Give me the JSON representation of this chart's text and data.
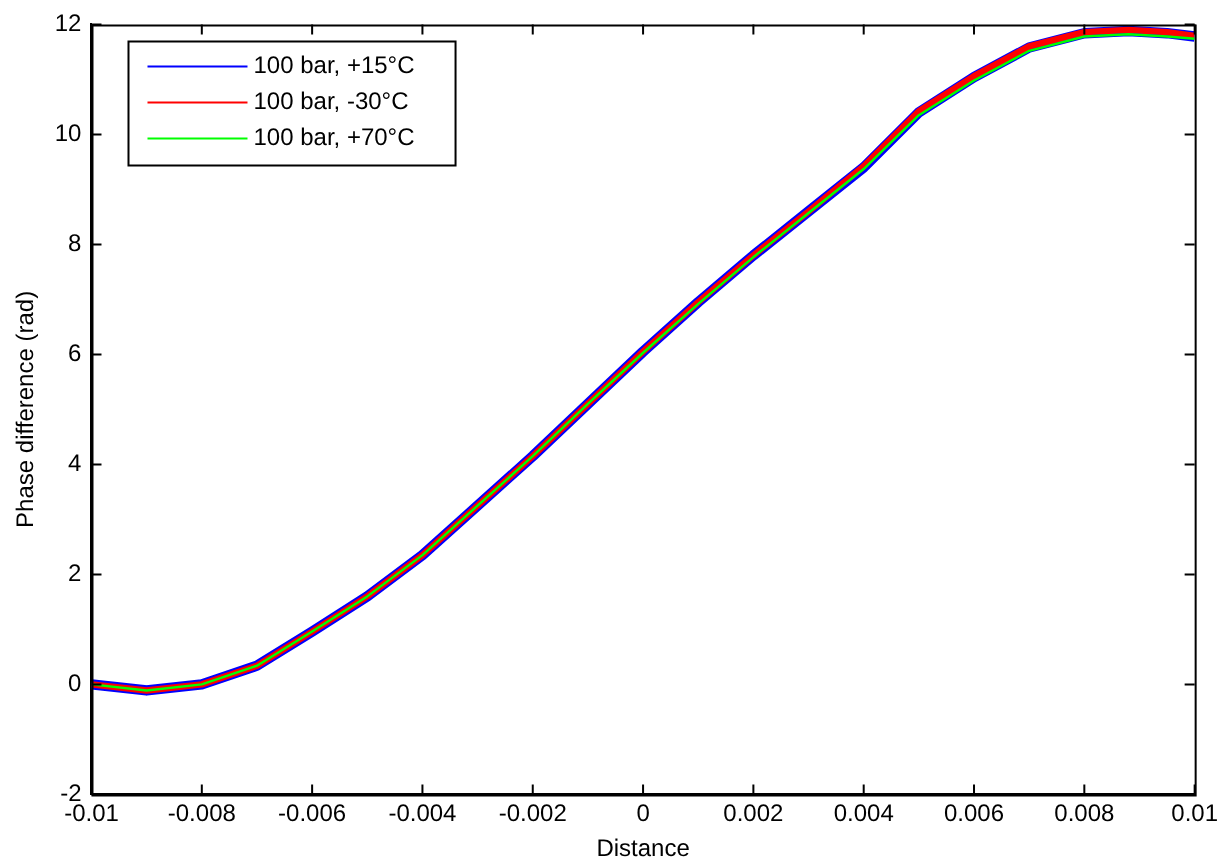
{
  "chart_data": {
    "type": "line",
    "xlabel": "Distance",
    "ylabel": "Phase difference (rad)",
    "x": [
      -0.01,
      -0.009,
      -0.008,
      -0.007,
      -0.006,
      -0.005,
      -0.004,
      -0.003,
      -0.002,
      -0.001,
      0,
      0.001,
      0.002,
      0.003,
      0.004,
      0.005,
      0.006,
      0.007,
      0.008,
      0.0088,
      0.0095,
      0.01
    ],
    "series": [
      {
        "name": "100 bar, +15°C",
        "color": "#0000ff",
        "values": [
          0,
          -0.11,
          0,
          0.34,
          0.96,
          1.6,
          2.35,
          3.25,
          4.15,
          5.1,
          6.05,
          6.95,
          7.8,
          8.6,
          9.4,
          10.4,
          11.04,
          11.58,
          11.84,
          11.88,
          11.84,
          11.78
        ]
      },
      {
        "name": "100 bar, -30°C",
        "color": "#ff0000",
        "values": [
          0,
          -0.11,
          0,
          0.34,
          0.96,
          1.6,
          2.35,
          3.25,
          4.15,
          5.1,
          6.05,
          6.95,
          7.8,
          8.6,
          9.42,
          10.42,
          11.06,
          11.6,
          11.86,
          11.9,
          11.86,
          11.79
        ]
      },
      {
        "name": "100 bar, +70°C",
        "color": "#00ff00",
        "values": [
          0,
          -0.11,
          0,
          0.34,
          0.96,
          1.6,
          2.35,
          3.25,
          4.15,
          5.1,
          6.03,
          6.92,
          7.77,
          8.57,
          9.37,
          10.35,
          10.98,
          11.52,
          11.78,
          11.82,
          11.78,
          11.74
        ]
      }
    ],
    "xlim": [
      -0.01,
      0.01
    ],
    "xticks": [
      -0.01,
      -0.008,
      -0.006,
      -0.004,
      -0.002,
      0,
      0.002,
      0.004,
      0.006,
      0.008,
      0.01
    ],
    "ylim": [
      -2,
      12
    ],
    "yticks": [
      -2,
      0,
      2,
      4,
      6,
      8,
      10,
      12
    ],
    "grid": false,
    "legend": "top left",
    "marker": "none",
    "line_style": "solid"
  }
}
